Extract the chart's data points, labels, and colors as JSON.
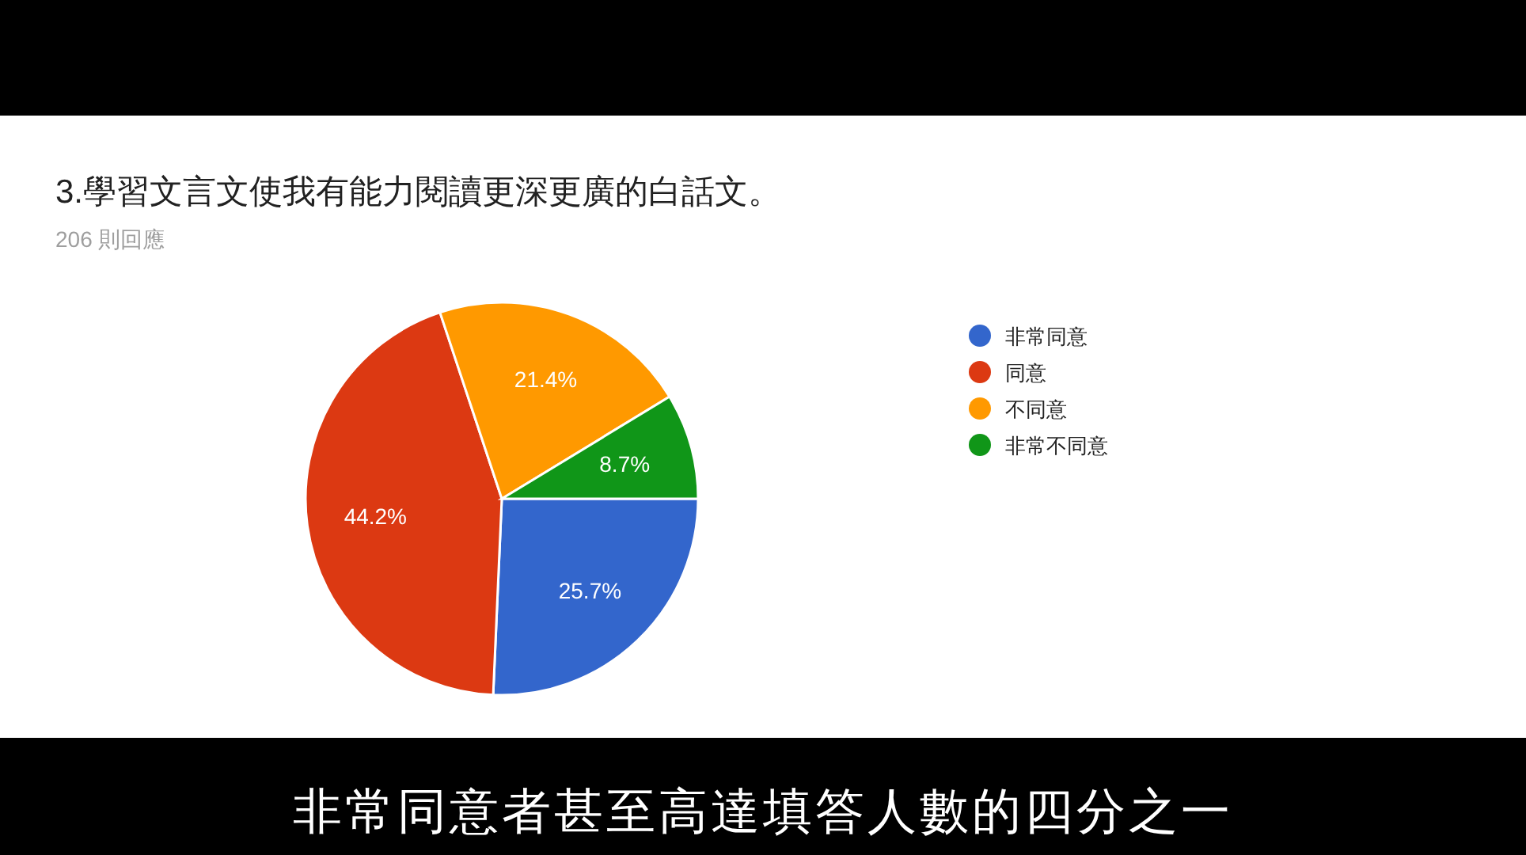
{
  "chart_data": {
    "type": "pie",
    "title": "3.學習文言文使我有能力閱讀更深更廣的白話文。",
    "subtitle": "206 則回應",
    "categories": [
      "非常同意",
      "同意",
      "不同意",
      "非常不同意"
    ],
    "values": [
      25.7,
      44.2,
      21.4,
      8.7
    ],
    "colors": [
      "#3366cc",
      "#dc3912",
      "#ff9900",
      "#109618"
    ],
    "value_labels": [
      "25.7%",
      "44.2%",
      "21.4%",
      "8.7%"
    ],
    "legend": "right",
    "annotations": [
      "非常同意者甚至高達填答人數的四分之一"
    ]
  }
}
